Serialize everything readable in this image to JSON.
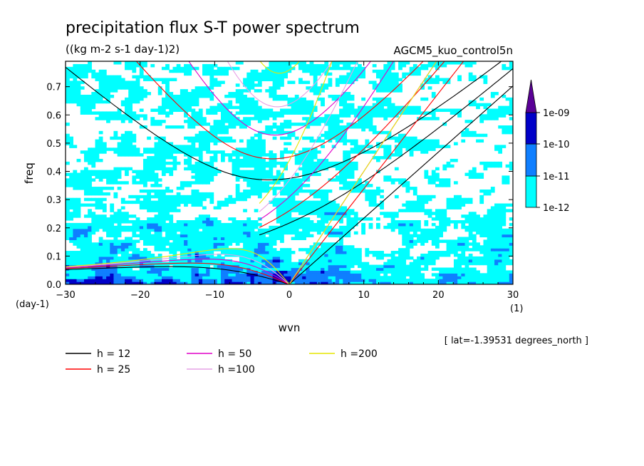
{
  "chart_data": {
    "type": "heatmap",
    "title": "precipitation flux S-T power spectrum",
    "units": "((kg m-2 s-1 day-1)2)",
    "model": "AGCM5_kuo_control5n",
    "xlabel": "wvn",
    "ylabel": "freq",
    "x_unit": "(1)",
    "y_unit": "(day-1)",
    "xlim": [
      -30,
      30
    ],
    "ylim": [
      0,
      0.79
    ],
    "x_ticks": [
      "-30",
      "-20",
      "-10",
      "0",
      "10",
      "20",
      "30"
    ],
    "y_ticks": [
      "0.0",
      "0.1",
      "0.2",
      "0.3",
      "0.4",
      "0.5",
      "0.6",
      "0.7"
    ],
    "annotation": "[ lat=-1.39531 degrees_north ]",
    "colorbar": {
      "levels": [
        "1e-12",
        "1e-11",
        "1e-10",
        "1e-09"
      ],
      "colors": [
        "#00ffff",
        "#0f7fff",
        "#0000c8",
        "#5a0096"
      ]
    },
    "dispersion_curves": [
      {
        "label": "h = 12",
        "equivalent_depth_m": 12,
        "color": "#000000"
      },
      {
        "label": "h = 25",
        "equivalent_depth_m": 25,
        "color": "#ff0000"
      },
      {
        "label": "h = 50",
        "equivalent_depth_m": 50,
        "color": "#e000c8"
      },
      {
        "label": "h =100",
        "equivalent_depth_m": 100,
        "color": "#e6a0e6"
      },
      {
        "label": "h =200",
        "equivalent_depth_m": 200,
        "color": "#e6e600"
      }
    ]
  }
}
